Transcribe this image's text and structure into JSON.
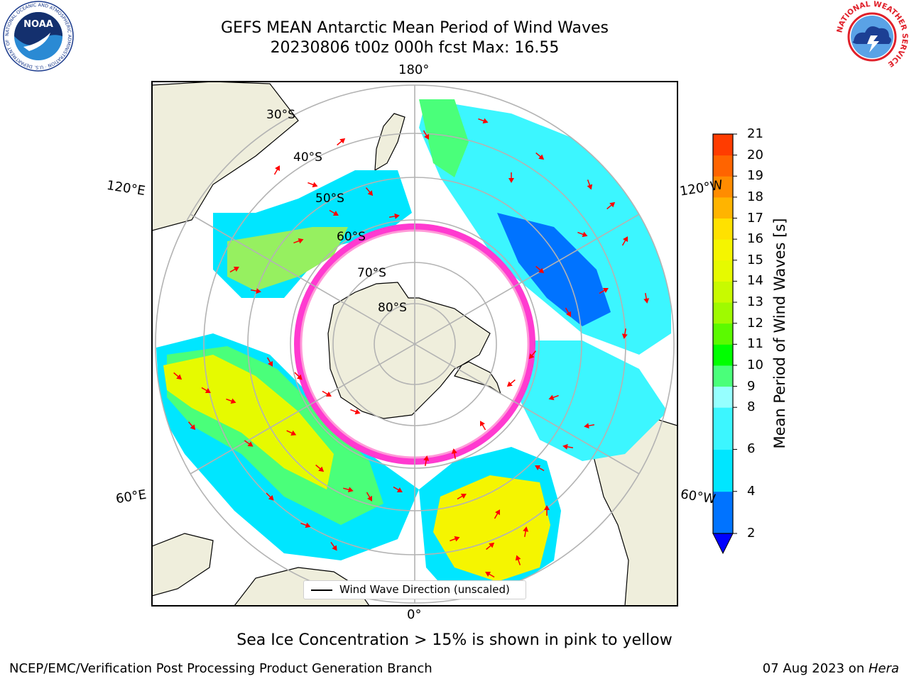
{
  "title": {
    "line1": "GEFS MEAN Antarctic Mean Period of Wind Waves",
    "line2": "20230806 t00z 000h fcst   Max: 16.55"
  },
  "map": {
    "projection": "south-polar-stereographic",
    "longitude_labels": {
      "top": "180°",
      "bottom": "0°",
      "left_upper": "120°E",
      "left_lower": "60°E",
      "right_upper": "120°W",
      "right_lower": "60°W"
    },
    "latitude_labels": [
      "30°S",
      "40°S",
      "50°S",
      "60°S",
      "70°S",
      "80°S"
    ],
    "colors": {
      "land": "#efeedc",
      "sea_ice_edge": "#ff3ad0",
      "graticule": "#b3b3b3",
      "arrows": "#ff0000"
    }
  },
  "legend": {
    "label": "Wind Wave Direction (unscaled)"
  },
  "colorbar": {
    "label": "Mean Period of Wind Waves [s]",
    "ticks": [
      "21",
      "20",
      "19",
      "18",
      "17",
      "16",
      "15",
      "14",
      "13",
      "12",
      "11",
      "10",
      "9",
      "8",
      "6",
      "4",
      "2"
    ],
    "tick_values": [
      21,
      20,
      19,
      18,
      17,
      16,
      15,
      14,
      13,
      12,
      11,
      10,
      9,
      8,
      6,
      4,
      2
    ],
    "colors": [
      "#0000ff",
      "#0073ff",
      "#00e6ff",
      "#3cf6ff",
      "#96ffff",
      "#4aff7a",
      "#00ff00",
      "#5bfa00",
      "#9ffa00",
      "#c8fa00",
      "#e6fa00",
      "#f5f500",
      "#ffe100",
      "#ffb400",
      "#ff8c00",
      "#ff6400",
      "#ff3c00",
      "#ff0000"
    ]
  },
  "note": "Sea Ice Concentration > 15% is shown in pink to yellow",
  "footer": {
    "left": "NCEP/EMC/Verification Post Processing Product Generation Branch",
    "right_date": "07 Aug 2023 on ",
    "right_host": "Hera"
  },
  "logos": {
    "left_text": "NOAA",
    "left_ring": "NATIONAL OCEANIC AND ATMOSPHERIC ADMINISTRATION · U.S. DEPARTMENT OF COMMERCE",
    "right_ring": "NATIONAL WEATHER SERVICE"
  }
}
